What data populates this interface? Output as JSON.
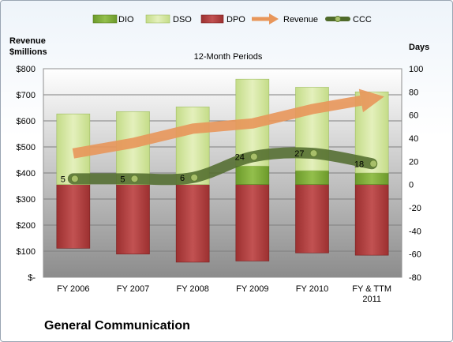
{
  "chart_data": {
    "type": "bar",
    "title": "12-Month Periods",
    "footer_title": "General Communication",
    "y_left_label": [
      "Revenue",
      "$millions"
    ],
    "y_right_label": "Days",
    "y_left_ticks": [
      "$-",
      "$100",
      "$200",
      "$300",
      "$400",
      "$500",
      "$600",
      "$700",
      "$800"
    ],
    "y_right_ticks": [
      "-80",
      "-60",
      "-40",
      "-20",
      "0",
      "20",
      "40",
      "60",
      "80",
      "100"
    ],
    "ylim_left": [
      0,
      800
    ],
    "ylim_right": [
      -80,
      100
    ],
    "categories": [
      [
        "FY 2006"
      ],
      [
        "FY 2007"
      ],
      [
        "FY 2008"
      ],
      [
        "FY 2009"
      ],
      [
        "FY 2010"
      ],
      [
        "FY & TTM",
        "2011"
      ]
    ],
    "legend": [
      "DIO",
      "DSO",
      "DPO",
      "Revenue",
      "CCC"
    ],
    "legend_position": "top",
    "series": [
      {
        "name": "DIO",
        "axis": "right",
        "color": "#7fa83a",
        "values": [
          0,
          0,
          0,
          16,
          12,
          10
        ]
      },
      {
        "name": "DSO",
        "axis": "right",
        "color": "#d6e8a6",
        "values": [
          61,
          63,
          67,
          75,
          72,
          70
        ]
      },
      {
        "name": "DPO",
        "axis": "right",
        "color": "#a33a3a",
        "values": [
          -55,
          -60,
          -67,
          -66,
          -59,
          -61
        ]
      },
      {
        "name": "Revenue",
        "axis": "left",
        "color": "#e8965a",
        "values": [
          475,
          515,
          570,
          590,
          645,
          685
        ]
      },
      {
        "name": "CCC",
        "axis": "right",
        "color": "#5a7a32",
        "values": [
          5,
          5,
          6,
          24,
          27,
          18
        ]
      }
    ],
    "data_labels": [
      "5",
      "5",
      "6",
      "24",
      "27",
      "18"
    ]
  }
}
